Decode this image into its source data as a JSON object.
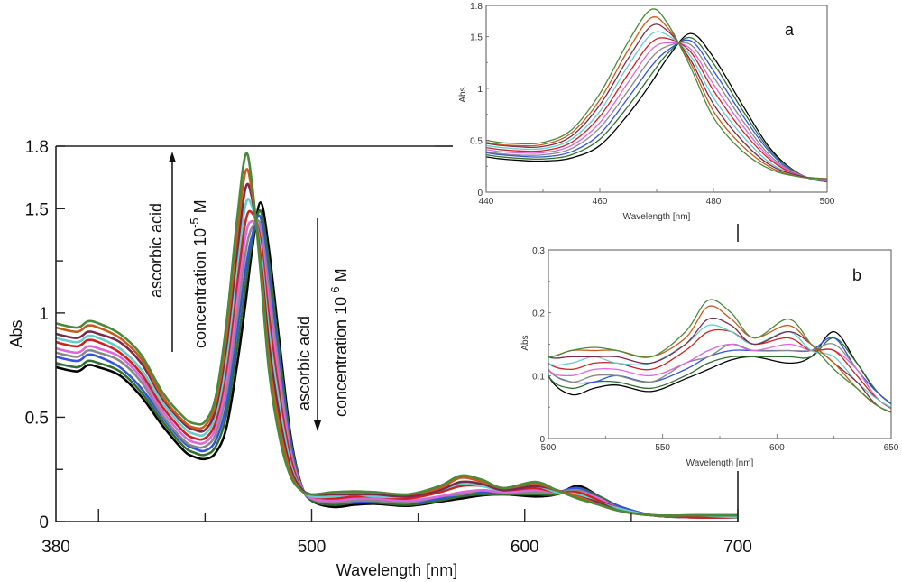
{
  "chart_data": [
    {
      "id": "main",
      "type": "line",
      "title": "",
      "xlabel": "Wavelength [nm]",
      "ylabel": "Abs",
      "xlim": [
        380,
        700
      ],
      "ylim": [
        0,
        1.8
      ],
      "xticks": [
        380,
        500,
        600,
        700
      ],
      "xticks_minor": [
        400,
        450,
        550,
        650
      ],
      "yticks": [
        0,
        0.5,
        1,
        1.5,
        1.8
      ],
      "ytick_labels": [
        "0",
        "0.5",
        "1",
        "1.5",
        "1.8"
      ],
      "yticks_minor": [
        0.25,
        0.75,
        1.25
      ],
      "grid": false,
      "legend": "none",
      "annotations": [
        {
          "id": "up",
          "line1": "ascorbic acid",
          "line2_prefix": "concentration 10",
          "exponent": "-5",
          "unit": " M",
          "arrow": "up"
        },
        {
          "id": "down",
          "line1": "ascorbic acid",
          "line2_prefix": "concentration 10",
          "exponent": "-6",
          "unit": " M",
          "arrow": "down"
        }
      ]
    },
    {
      "id": "inset-a",
      "type": "line",
      "panel_label": "a",
      "xlabel": "Wavelength [nm]",
      "ylabel": "Abs",
      "xlim": [
        440,
        500
      ],
      "ylim": [
        0,
        1.8
      ],
      "xticks": [
        440,
        460,
        480,
        500
      ],
      "xticks_minor": [
        450,
        470,
        490
      ],
      "yticks": [
        0,
        0.5,
        1,
        1.5,
        1.8
      ],
      "ytick_labels": [
        "0",
        "0.5",
        "1",
        "1.5",
        "1.8"
      ],
      "yticks_minor": [
        0.25,
        0.75,
        1.25
      ],
      "grid": false,
      "legend": "none"
    },
    {
      "id": "inset-b",
      "type": "line",
      "panel_label": "b",
      "xlabel": "Wavelength [nm]",
      "ylabel": "Abs",
      "xlim": [
        500,
        650
      ],
      "ylim": [
        0,
        0.3
      ],
      "xticks": [
        500,
        550,
        600,
        650
      ],
      "xticks_minor": [
        525,
        575,
        625
      ],
      "yticks": [
        0,
        0.1,
        0.2,
        0.3
      ],
      "ytick_labels": [
        "0",
        "0.1",
        "0.2",
        "0.3"
      ],
      "yticks_minor": [
        0.05,
        0.15,
        0.25
      ],
      "grid": false,
      "legend": "none"
    }
  ],
  "spectra": {
    "x": [
      380,
      390,
      395,
      400,
      410,
      420,
      430,
      440,
      445,
      450,
      455,
      460,
      465,
      469,
      472,
      476,
      480,
      485,
      490,
      495,
      500,
      510,
      520,
      530,
      545,
      560,
      570,
      580,
      590,
      605,
      615,
      625,
      635,
      645,
      660,
      680,
      700
    ],
    "series": [
      {
        "name": "s0",
        "color": "#000000",
        "values": [
          0.74,
          0.72,
          0.75,
          0.74,
          0.7,
          0.6,
          0.46,
          0.34,
          0.31,
          0.3,
          0.33,
          0.45,
          0.75,
          1.05,
          1.3,
          1.53,
          1.3,
          0.85,
          0.42,
          0.18,
          0.1,
          0.07,
          0.08,
          0.085,
          0.075,
          0.095,
          0.11,
          0.125,
          0.13,
          0.12,
          0.13,
          0.17,
          0.12,
          0.07,
          0.03,
          0.02,
          0.02
        ]
      },
      {
        "name": "s1",
        "color": "#2f6f2f",
        "values": [
          0.76,
          0.74,
          0.77,
          0.76,
          0.72,
          0.62,
          0.48,
          0.36,
          0.33,
          0.32,
          0.36,
          0.51,
          0.83,
          1.13,
          1.34,
          1.49,
          1.24,
          0.8,
          0.4,
          0.18,
          0.1,
          0.08,
          0.09,
          0.09,
          0.08,
          0.1,
          0.12,
          0.13,
          0.13,
          0.13,
          0.13,
          0.16,
          0.12,
          0.07,
          0.03,
          0.02,
          0.02
        ]
      },
      {
        "name": "s2",
        "color": "#3355dd",
        "values": [
          0.79,
          0.77,
          0.8,
          0.79,
          0.74,
          0.64,
          0.5,
          0.38,
          0.35,
          0.34,
          0.39,
          0.56,
          0.91,
          1.21,
          1.37,
          1.46,
          1.17,
          0.75,
          0.38,
          0.17,
          0.11,
          0.09,
          0.09,
          0.1,
          0.09,
          0.11,
          0.13,
          0.14,
          0.14,
          0.14,
          0.14,
          0.16,
          0.11,
          0.07,
          0.03,
          0.02,
          0.02
        ]
      },
      {
        "name": "s3",
        "color": "#888888",
        "values": [
          0.81,
          0.79,
          0.82,
          0.81,
          0.77,
          0.67,
          0.51,
          0.39,
          0.36,
          0.36,
          0.42,
          0.62,
          0.98,
          1.29,
          1.41,
          1.42,
          1.11,
          0.7,
          0.35,
          0.17,
          0.11,
          0.09,
          0.1,
          0.1,
          0.09,
          0.12,
          0.13,
          0.15,
          0.14,
          0.14,
          0.14,
          0.15,
          0.11,
          0.06,
          0.03,
          0.02,
          0.02
        ]
      },
      {
        "name": "s4",
        "color": "#dd66dd",
        "values": [
          0.83,
          0.81,
          0.84,
          0.83,
          0.79,
          0.69,
          0.53,
          0.41,
          0.38,
          0.38,
          0.45,
          0.67,
          1.06,
          1.37,
          1.44,
          1.38,
          1.04,
          0.65,
          0.33,
          0.17,
          0.11,
          0.1,
          0.11,
          0.11,
          0.1,
          0.12,
          0.14,
          0.15,
          0.14,
          0.15,
          0.14,
          0.14,
          0.11,
          0.06,
          0.03,
          0.02,
          0.02
        ]
      },
      {
        "name": "s5",
        "color": "#cc2222",
        "values": [
          0.86,
          0.84,
          0.87,
          0.86,
          0.81,
          0.71,
          0.55,
          0.43,
          0.4,
          0.4,
          0.48,
          0.73,
          1.14,
          1.44,
          1.48,
          1.35,
          0.98,
          0.6,
          0.31,
          0.16,
          0.12,
          0.11,
          0.12,
          0.12,
          0.11,
          0.14,
          0.17,
          0.17,
          0.15,
          0.16,
          0.14,
          0.14,
          0.1,
          0.06,
          0.03,
          0.02,
          0.02
        ]
      },
      {
        "name": "s6",
        "color": "#66cccc",
        "values": [
          0.88,
          0.86,
          0.89,
          0.88,
          0.83,
          0.73,
          0.57,
          0.45,
          0.42,
          0.42,
          0.51,
          0.78,
          1.22,
          1.52,
          1.51,
          1.31,
          0.91,
          0.55,
          0.28,
          0.16,
          0.12,
          0.12,
          0.13,
          0.12,
          0.12,
          0.15,
          0.18,
          0.17,
          0.15,
          0.17,
          0.14,
          0.13,
          0.09,
          0.06,
          0.03,
          0.03,
          0.02
        ]
      },
      {
        "name": "s7",
        "color": "#7a2a4a",
        "values": [
          0.9,
          0.88,
          0.91,
          0.9,
          0.86,
          0.76,
          0.59,
          0.47,
          0.44,
          0.44,
          0.54,
          0.84,
          1.29,
          1.6,
          1.55,
          1.27,
          0.85,
          0.5,
          0.26,
          0.16,
          0.13,
          0.13,
          0.13,
          0.13,
          0.12,
          0.15,
          0.19,
          0.18,
          0.15,
          0.17,
          0.15,
          0.12,
          0.09,
          0.05,
          0.03,
          0.03,
          0.03
        ]
      },
      {
        "name": "s8",
        "color": "#c85a1a",
        "values": [
          0.93,
          0.91,
          0.94,
          0.93,
          0.88,
          0.78,
          0.6,
          0.48,
          0.45,
          0.46,
          0.57,
          0.89,
          1.37,
          1.68,
          1.58,
          1.24,
          0.78,
          0.45,
          0.24,
          0.15,
          0.13,
          0.14,
          0.14,
          0.14,
          0.13,
          0.16,
          0.21,
          0.19,
          0.16,
          0.18,
          0.15,
          0.12,
          0.08,
          0.05,
          0.03,
          0.03,
          0.03
        ]
      },
      {
        "name": "s9",
        "color": "#4a8a3a",
        "values": [
          0.95,
          0.93,
          0.96,
          0.95,
          0.9,
          0.8,
          0.62,
          0.5,
          0.47,
          0.48,
          0.6,
          0.95,
          1.45,
          1.76,
          1.62,
          1.2,
          0.72,
          0.4,
          0.22,
          0.15,
          0.13,
          0.14,
          0.145,
          0.14,
          0.13,
          0.17,
          0.22,
          0.2,
          0.16,
          0.19,
          0.15,
          0.11,
          0.08,
          0.05,
          0.03,
          0.03,
          0.03
        ]
      }
    ]
  }
}
